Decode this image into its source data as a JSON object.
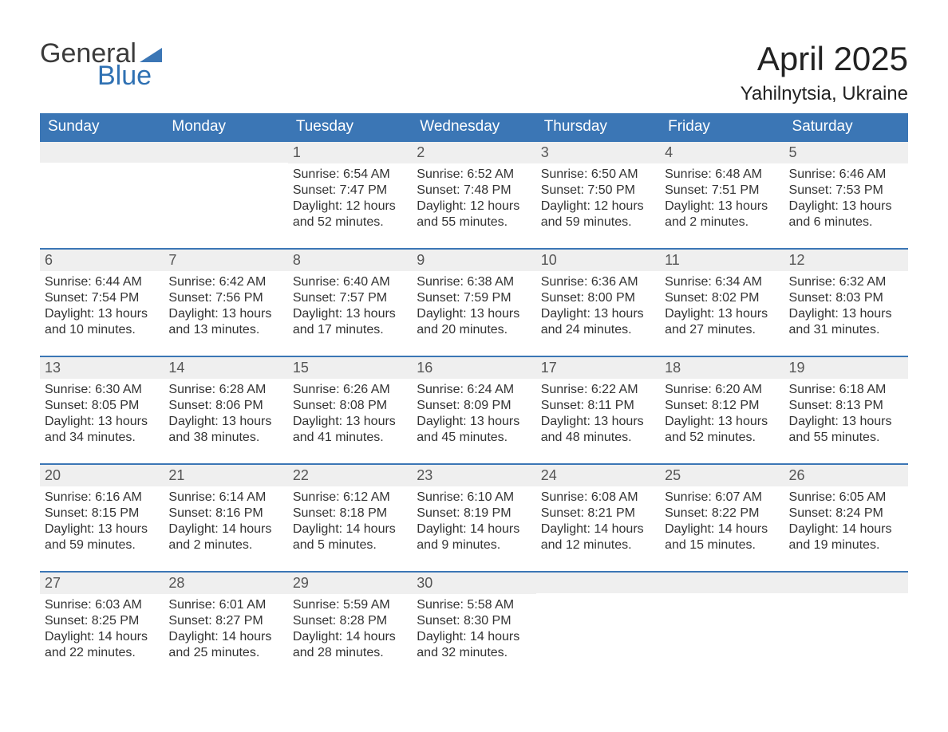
{
  "brand": {
    "word1": "General",
    "word2": "Blue",
    "word1_color": "#3b3b3b",
    "word2_color": "#2f71b3",
    "flag_color": "#3b76b5"
  },
  "title": "April 2025",
  "location": "Yahilnytsia, Ukraine",
  "colors": {
    "header_bg": "#3b76b5",
    "header_text": "#ffffff",
    "daynum_bg": "#efefef",
    "daynum_text": "#555555",
    "border_top": "#3b76b5",
    "body_text": "#333333",
    "page_bg": "#ffffff"
  },
  "typography": {
    "title_fontsize": 42,
    "location_fontsize": 24,
    "dow_fontsize": 19,
    "daynum_fontsize": 18,
    "body_fontsize": 16
  },
  "days_of_week": [
    "Sunday",
    "Monday",
    "Tuesday",
    "Wednesday",
    "Thursday",
    "Friday",
    "Saturday"
  ],
  "weeks": [
    [
      null,
      null,
      {
        "n": "1",
        "sunrise": "Sunrise: 6:54 AM",
        "sunset": "Sunset: 7:47 PM",
        "daylight": "Daylight: 12 hours and 52 minutes."
      },
      {
        "n": "2",
        "sunrise": "Sunrise: 6:52 AM",
        "sunset": "Sunset: 7:48 PM",
        "daylight": "Daylight: 12 hours and 55 minutes."
      },
      {
        "n": "3",
        "sunrise": "Sunrise: 6:50 AM",
        "sunset": "Sunset: 7:50 PM",
        "daylight": "Daylight: 12 hours and 59 minutes."
      },
      {
        "n": "4",
        "sunrise": "Sunrise: 6:48 AM",
        "sunset": "Sunset: 7:51 PM",
        "daylight": "Daylight: 13 hours and 2 minutes."
      },
      {
        "n": "5",
        "sunrise": "Sunrise: 6:46 AM",
        "sunset": "Sunset: 7:53 PM",
        "daylight": "Daylight: 13 hours and 6 minutes."
      }
    ],
    [
      {
        "n": "6",
        "sunrise": "Sunrise: 6:44 AM",
        "sunset": "Sunset: 7:54 PM",
        "daylight": "Daylight: 13 hours and 10 minutes."
      },
      {
        "n": "7",
        "sunrise": "Sunrise: 6:42 AM",
        "sunset": "Sunset: 7:56 PM",
        "daylight": "Daylight: 13 hours and 13 minutes."
      },
      {
        "n": "8",
        "sunrise": "Sunrise: 6:40 AM",
        "sunset": "Sunset: 7:57 PM",
        "daylight": "Daylight: 13 hours and 17 minutes."
      },
      {
        "n": "9",
        "sunrise": "Sunrise: 6:38 AM",
        "sunset": "Sunset: 7:59 PM",
        "daylight": "Daylight: 13 hours and 20 minutes."
      },
      {
        "n": "10",
        "sunrise": "Sunrise: 6:36 AM",
        "sunset": "Sunset: 8:00 PM",
        "daylight": "Daylight: 13 hours and 24 minutes."
      },
      {
        "n": "11",
        "sunrise": "Sunrise: 6:34 AM",
        "sunset": "Sunset: 8:02 PM",
        "daylight": "Daylight: 13 hours and 27 minutes."
      },
      {
        "n": "12",
        "sunrise": "Sunrise: 6:32 AM",
        "sunset": "Sunset: 8:03 PM",
        "daylight": "Daylight: 13 hours and 31 minutes."
      }
    ],
    [
      {
        "n": "13",
        "sunrise": "Sunrise: 6:30 AM",
        "sunset": "Sunset: 8:05 PM",
        "daylight": "Daylight: 13 hours and 34 minutes."
      },
      {
        "n": "14",
        "sunrise": "Sunrise: 6:28 AM",
        "sunset": "Sunset: 8:06 PM",
        "daylight": "Daylight: 13 hours and 38 minutes."
      },
      {
        "n": "15",
        "sunrise": "Sunrise: 6:26 AM",
        "sunset": "Sunset: 8:08 PM",
        "daylight": "Daylight: 13 hours and 41 minutes."
      },
      {
        "n": "16",
        "sunrise": "Sunrise: 6:24 AM",
        "sunset": "Sunset: 8:09 PM",
        "daylight": "Daylight: 13 hours and 45 minutes."
      },
      {
        "n": "17",
        "sunrise": "Sunrise: 6:22 AM",
        "sunset": "Sunset: 8:11 PM",
        "daylight": "Daylight: 13 hours and 48 minutes."
      },
      {
        "n": "18",
        "sunrise": "Sunrise: 6:20 AM",
        "sunset": "Sunset: 8:12 PM",
        "daylight": "Daylight: 13 hours and 52 minutes."
      },
      {
        "n": "19",
        "sunrise": "Sunrise: 6:18 AM",
        "sunset": "Sunset: 8:13 PM",
        "daylight": "Daylight: 13 hours and 55 minutes."
      }
    ],
    [
      {
        "n": "20",
        "sunrise": "Sunrise: 6:16 AM",
        "sunset": "Sunset: 8:15 PM",
        "daylight": "Daylight: 13 hours and 59 minutes."
      },
      {
        "n": "21",
        "sunrise": "Sunrise: 6:14 AM",
        "sunset": "Sunset: 8:16 PM",
        "daylight": "Daylight: 14 hours and 2 minutes."
      },
      {
        "n": "22",
        "sunrise": "Sunrise: 6:12 AM",
        "sunset": "Sunset: 8:18 PM",
        "daylight": "Daylight: 14 hours and 5 minutes."
      },
      {
        "n": "23",
        "sunrise": "Sunrise: 6:10 AM",
        "sunset": "Sunset: 8:19 PM",
        "daylight": "Daylight: 14 hours and 9 minutes."
      },
      {
        "n": "24",
        "sunrise": "Sunrise: 6:08 AM",
        "sunset": "Sunset: 8:21 PM",
        "daylight": "Daylight: 14 hours and 12 minutes."
      },
      {
        "n": "25",
        "sunrise": "Sunrise: 6:07 AM",
        "sunset": "Sunset: 8:22 PM",
        "daylight": "Daylight: 14 hours and 15 minutes."
      },
      {
        "n": "26",
        "sunrise": "Sunrise: 6:05 AM",
        "sunset": "Sunset: 8:24 PM",
        "daylight": "Daylight: 14 hours and 19 minutes."
      }
    ],
    [
      {
        "n": "27",
        "sunrise": "Sunrise: 6:03 AM",
        "sunset": "Sunset: 8:25 PM",
        "daylight": "Daylight: 14 hours and 22 minutes."
      },
      {
        "n": "28",
        "sunrise": "Sunrise: 6:01 AM",
        "sunset": "Sunset: 8:27 PM",
        "daylight": "Daylight: 14 hours and 25 minutes."
      },
      {
        "n": "29",
        "sunrise": "Sunrise: 5:59 AM",
        "sunset": "Sunset: 8:28 PM",
        "daylight": "Daylight: 14 hours and 28 minutes."
      },
      {
        "n": "30",
        "sunrise": "Sunrise: 5:58 AM",
        "sunset": "Sunset: 8:30 PM",
        "daylight": "Daylight: 14 hours and 32 minutes."
      },
      null,
      null,
      null
    ]
  ]
}
